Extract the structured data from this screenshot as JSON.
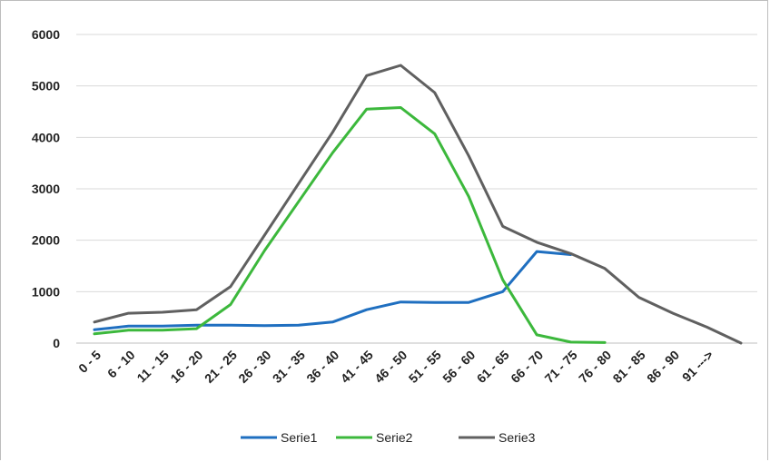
{
  "chart_data": {
    "type": "line",
    "title": "",
    "xlabel": "",
    "ylabel": "",
    "ylim": [
      0,
      6000
    ],
    "yticks": [
      0,
      1000,
      2000,
      3000,
      4000,
      5000,
      6000
    ],
    "grid": true,
    "legend_position": "bottom",
    "categories": [
      "0 - 5",
      "6 - 10",
      "11 - 15",
      "16 - 20",
      "21 - 25",
      "26 - 30",
      "31 - 35",
      "36 - 40",
      "41 - 45",
      "46 - 50",
      "51 - 55",
      "56 - 60",
      "61 - 65",
      "66 - 70",
      "71 - 75",
      "76 - 80",
      "81 - 85",
      "86 - 90",
      "91 --->",
      ""
    ],
    "series": [
      {
        "name": "Serie1",
        "color": "#1f6fc0",
        "values": [
          260,
          330,
          330,
          350,
          350,
          340,
          350,
          410,
          650,
          800,
          790,
          790,
          1000,
          1780,
          1720,
          null,
          null,
          null,
          null,
          null
        ]
      },
      {
        "name": "Serie2",
        "color": "#3cb83c",
        "values": [
          180,
          250,
          250,
          280,
          750,
          1800,
          2750,
          3700,
          4550,
          4580,
          4070,
          2850,
          1230,
          160,
          20,
          10,
          null,
          null,
          null,
          null
        ]
      },
      {
        "name": "Serie3",
        "color": "#606060",
        "values": [
          410,
          580,
          600,
          650,
          1100,
          2100,
          3100,
          4100,
          5200,
          5400,
          4870,
          3640,
          2270,
          1960,
          1740,
          1450,
          890,
          580,
          310,
          0
        ]
      }
    ]
  }
}
